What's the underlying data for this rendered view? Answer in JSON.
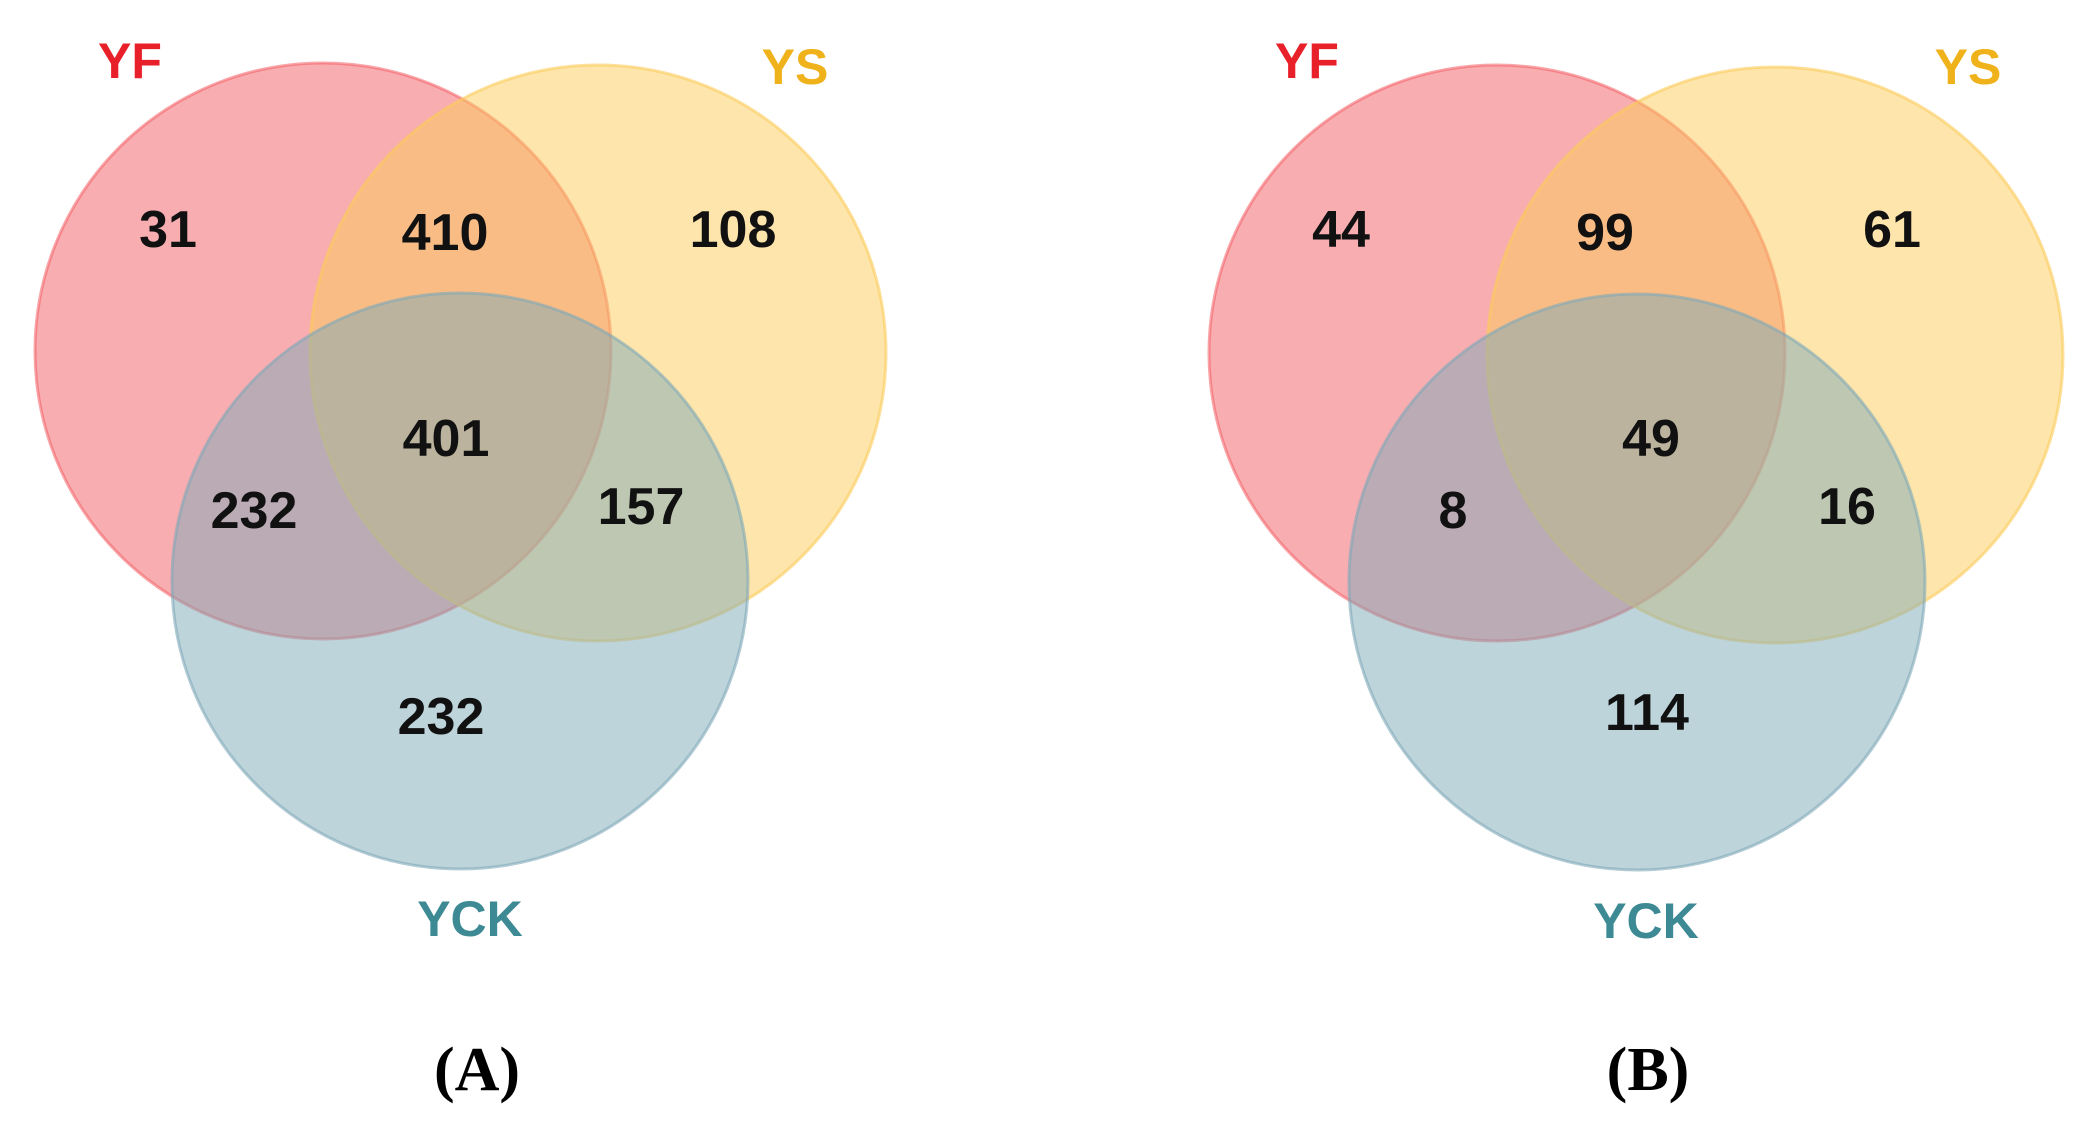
{
  "colors": {
    "YF": "#f25c63",
    "YS": "#fccb5a",
    "YCK": "#7ea9b8",
    "YF_label": "#e8202a",
    "YS_label": "#f0b21a",
    "YCK_label": "#3d8a95"
  },
  "panels": [
    {
      "label": "(A)",
      "sets": {
        "YF": "YF",
        "YS": "YS",
        "YCK": "YCK"
      },
      "regions": {
        "YF_only": "31",
        "YF_YS": "410",
        "YS_only": "108",
        "all": "401",
        "YF_YCK": "232",
        "YS_YCK": "157",
        "YCK_only": "232"
      }
    },
    {
      "label": "(B)",
      "sets": {
        "YF": "YF",
        "YS": "YS",
        "YCK": "YCK"
      },
      "regions": {
        "YF_only": "44",
        "YF_YS": "99",
        "YS_only": "61",
        "all": "49",
        "YF_YCK": "8",
        "YS_YCK": "16",
        "YCK_only": "114"
      }
    }
  ]
}
